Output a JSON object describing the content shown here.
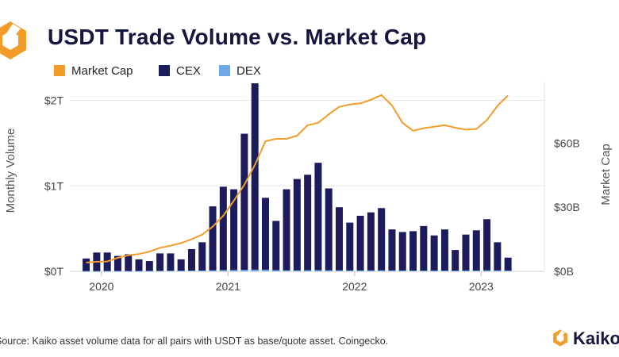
{
  "header": {
    "title": "USDT Trade Volume vs. Market Cap"
  },
  "footer": {
    "source": "Source: Kaiko asset volume data for all pairs with USDT as base/quote asset. Coingecko.",
    "brand": "Kaiko"
  },
  "colors": {
    "market_cap": "#f39c2a",
    "cex": "#1c1c5c",
    "dex": "#6ea8e6",
    "logo": "#f39c2a"
  },
  "chart_data": {
    "type": "bar",
    "title": "USDT Trade Volume vs. Market Cap",
    "ylabel": "Monthly Volume",
    "y2label": "Market Cap",
    "x_ticks": [
      "2020",
      "2021",
      "2022",
      "2023"
    ],
    "y_ticks": [
      "$0T",
      "$1T",
      "$2T"
    ],
    "y2_ticks": [
      "$0B",
      "$30B",
      "$60B"
    ],
    "ylim": [
      0,
      2.2
    ],
    "y2lim": [
      0,
      88
    ],
    "grid": true,
    "legend_position": "top-left",
    "months": [
      "2019-11",
      "2019-12",
      "2020-01",
      "2020-02",
      "2020-03",
      "2020-04",
      "2020-05",
      "2020-06",
      "2020-07",
      "2020-08",
      "2020-09",
      "2020-10",
      "2020-11",
      "2020-12",
      "2021-01",
      "2021-02",
      "2021-03",
      "2021-04",
      "2021-05",
      "2021-06",
      "2021-07",
      "2021-08",
      "2021-09",
      "2021-10",
      "2021-11",
      "2021-12",
      "2022-01",
      "2022-02",
      "2022-03",
      "2022-04",
      "2022-05",
      "2022-06",
      "2022-07",
      "2022-08",
      "2022-09",
      "2022-10",
      "2022-11",
      "2022-12",
      "2023-01",
      "2023-02",
      "2023-03",
      "2023-04",
      "2023-05"
    ],
    "series": [
      {
        "name": "Market Cap",
        "type": "line",
        "axis": "right",
        "unit": "B USD",
        "values": [
          4.1,
          4.1,
          4.5,
          4.6,
          6.3,
          7.5,
          8.1,
          9.2,
          11.0,
          12.0,
          13.2,
          15.0,
          17.2,
          20.9,
          26.0,
          33.0,
          40.5,
          49.8,
          60.9,
          62.0,
          62.0,
          63.5,
          68.4,
          69.5,
          73.5,
          77.0,
          78.1,
          78.6,
          80.3,
          82.5,
          77.6,
          69.5,
          65.8,
          67.0,
          67.7,
          68.4,
          67.2,
          66.3,
          66.6,
          70.8,
          77.4,
          82.3,
          83.0
        ]
      },
      {
        "name": "CEX",
        "type": "bar",
        "axis": "left",
        "unit": "T USD",
        "values": [
          0,
          0.15,
          0.22,
          0.22,
          0.18,
          0.2,
          0.14,
          0.12,
          0.21,
          0.21,
          0.14,
          0.26,
          0.34,
          0.76,
          0.99,
          0.96,
          1.61,
          2.2,
          0.86,
          0.59,
          0.96,
          1.08,
          1.13,
          1.27,
          0.97,
          0.75,
          0.57,
          0.65,
          0.69,
          0.74,
          0.49,
          0.46,
          0.47,
          0.53,
          0.42,
          0.49,
          0.25,
          0.43,
          0.48,
          0.61,
          0.34,
          0.16,
          0
        ]
      },
      {
        "name": "DEX",
        "type": "bar",
        "axis": "left",
        "unit": "T USD",
        "values": [
          0,
          0.004,
          0.004,
          0.005,
          0.005,
          0.005,
          0.005,
          0.006,
          0.007,
          0.008,
          0.008,
          0.009,
          0.01,
          0.012,
          0.015,
          0.016,
          0.018,
          0.02,
          0.02,
          0.014,
          0.012,
          0.012,
          0.013,
          0.014,
          0.013,
          0.012,
          0.011,
          0.011,
          0.011,
          0.012,
          0.011,
          0.01,
          0.009,
          0.009,
          0.009,
          0.009,
          0.008,
          0.009,
          0.01,
          0.012,
          0.011,
          0.01,
          0
        ]
      }
    ]
  }
}
